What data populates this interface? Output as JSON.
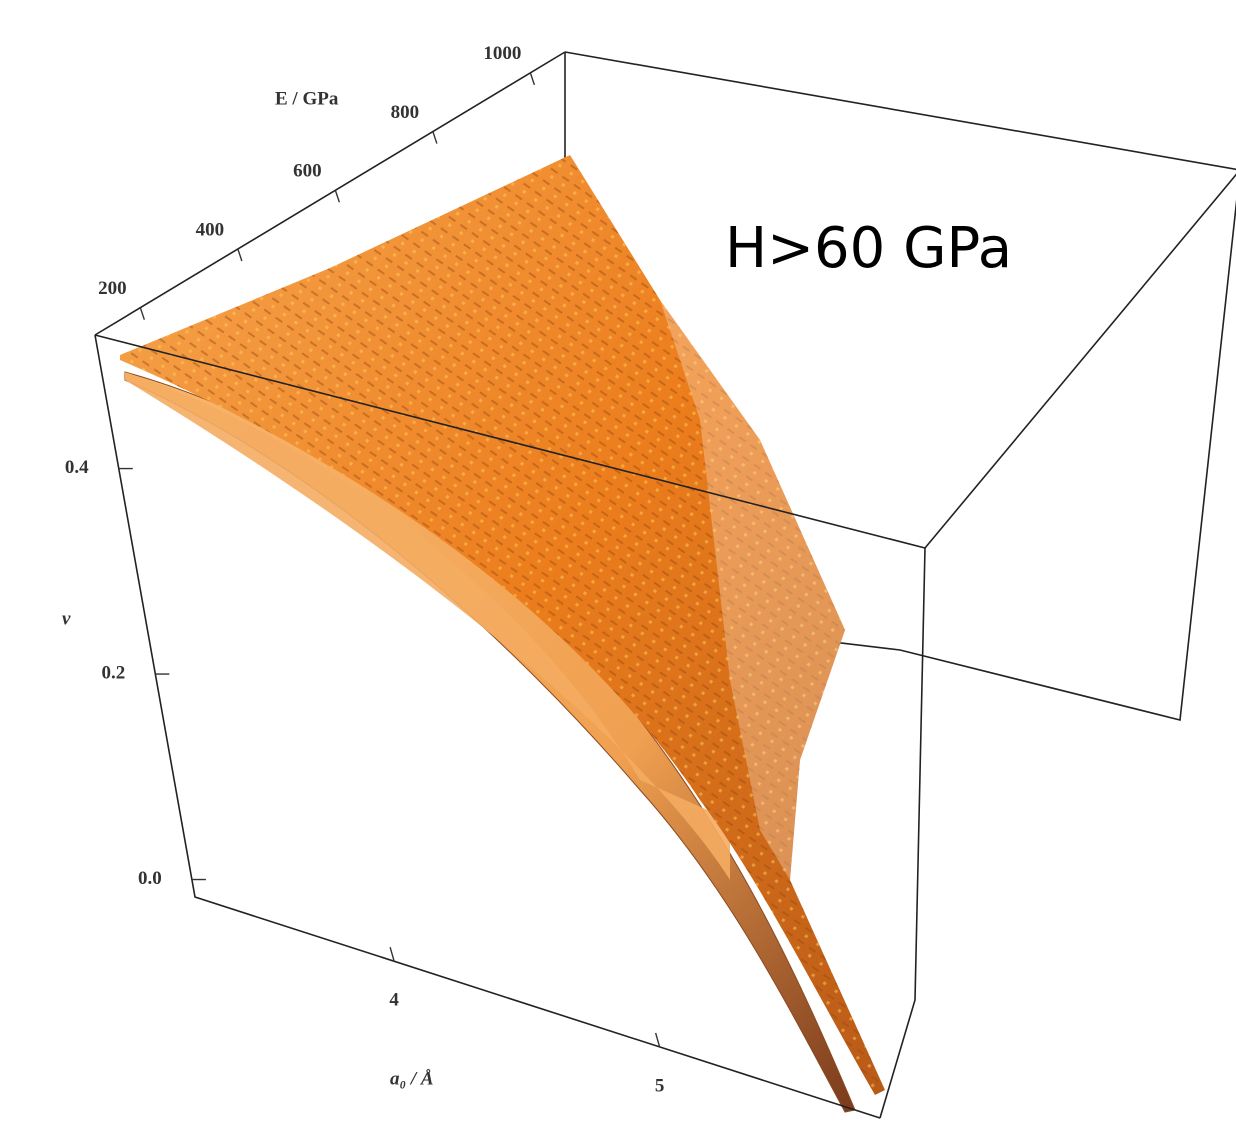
{
  "chart_data": {
    "type": "surface3d",
    "annotation": "H>60 GPa",
    "xlabel": "a₀ / Å",
    "ylabel": "ν",
    "zlabel": "E / GPa",
    "xlim": [
      3.25,
      5.83
    ],
    "xticks": [
      4,
      5
    ],
    "ylim": [
      -0.017,
      0.53
    ],
    "yticks": [
      {
        "value": 0,
        "label": "0.0"
      },
      0.2,
      0.4
    ],
    "zlim": [
      107,
      1071
    ],
    "zticks": [
      200,
      400,
      600,
      800,
      1000
    ],
    "color": "#f08a24"
  }
}
